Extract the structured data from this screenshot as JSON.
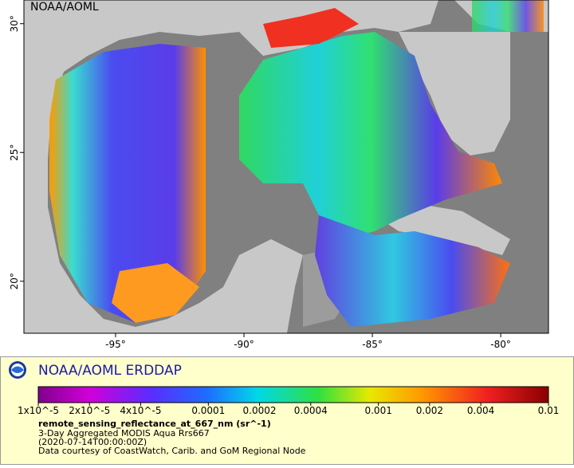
{
  "map": {
    "label": "NOAA/AOML",
    "xlim": [
      -98.57,
      -78.14
    ],
    "ylim": [
      17.98,
      30.92
    ],
    "xticks": [
      {
        "value": -95,
        "label": "-95°"
      },
      {
        "value": -90,
        "label": "-90°"
      },
      {
        "value": -85,
        "label": "-85°"
      },
      {
        "value": -80,
        "label": "-80°"
      }
    ],
    "yticks": [
      {
        "value": 20,
        "label": "20°"
      },
      {
        "value": 25,
        "label": "25°"
      },
      {
        "value": 30,
        "label": "30°"
      }
    ]
  },
  "legend": {
    "brand": "NOAA/AOML ERDDAP",
    "clim": [
      1e-05,
      0.01
    ],
    "log_scale": true,
    "ticks": [
      {
        "value": 1e-05,
        "label": "1x10^-5"
      },
      {
        "value": 2e-05,
        "label": "2x10^-5"
      },
      {
        "value": 4e-05,
        "label": "4x10^-5"
      },
      0.0001,
      0.0002,
      0.0004,
      0.001,
      0.002,
      0.004,
      0.01
    ],
    "variable": "remote_sensing_reflectance_at_667_nm (sr^-1)",
    "lines": [
      "3-Day Aggregated MODIS Aqua Rrs667",
      "(2020-07-14T00:00:00Z)",
      "Data courtesy of CoastWatch, Carib. and GoM Regional Node"
    ]
  }
}
